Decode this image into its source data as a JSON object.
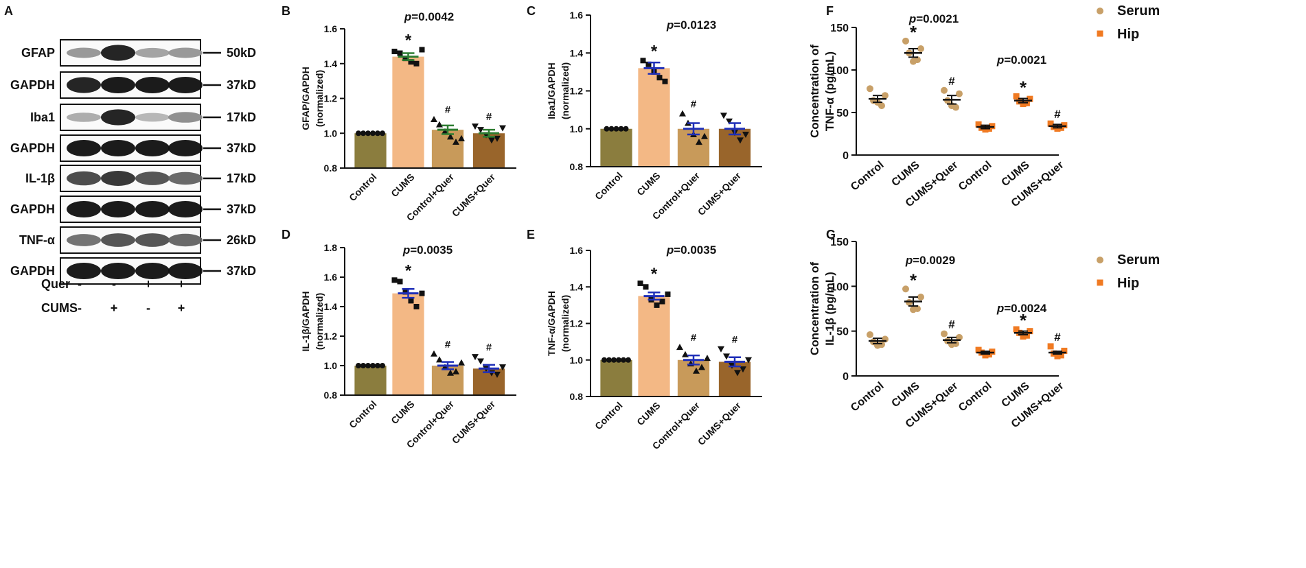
{
  "colors": {
    "control": "#8B7D3E",
    "cums": "#F3B885",
    "control_quer": "#C89A5A",
    "cums_quer": "#99652B",
    "serum": "#C8A068",
    "hip": "#F07A22",
    "err_green": "#2E7D32",
    "err_blue": "#1F2FB8",
    "black": "#111111"
  },
  "blot": {
    "panel": "A",
    "rows": [
      {
        "label": "GFAP",
        "kd": "50kD"
      },
      {
        "label": "GAPDH",
        "kd": "37kD"
      },
      {
        "label": "Iba1",
        "kd": "17kD"
      },
      {
        "label": "GAPDH",
        "kd": "37kD"
      },
      {
        "label": "IL-1β",
        "kd": "17kD"
      },
      {
        "label": "GAPDH",
        "kd": "37kD"
      },
      {
        "label": "TNF-α",
        "kd": "26kD"
      },
      {
        "label": "GAPDH",
        "kd": "37kD"
      }
    ],
    "conditions": [
      {
        "name": "Quer",
        "signs": [
          "-",
          "-",
          "+",
          "+"
        ]
      },
      {
        "name": "CUMS",
        "signs": [
          "-",
          "+",
          "-",
          "+"
        ]
      }
    ]
  },
  "chart_data": [
    {
      "panel": "B",
      "type": "bar",
      "ylabel": "GFAP/GAPDH\n(normalized)",
      "ylim": [
        0.8,
        1.6
      ],
      "yticks": [
        0.8,
        1.0,
        1.2,
        1.4,
        1.6
      ],
      "categories": [
        "Control",
        "CUMS",
        "Control+Quer",
        "CUMS+Quer"
      ],
      "values": [
        1.0,
        1.44,
        1.02,
        1.0
      ],
      "sem": [
        0,
        0.02,
        0.025,
        0.02
      ],
      "err_color": "err_green",
      "p": "p=0.0042",
      "stars": [
        "",
        "*",
        "#",
        "#"
      ],
      "markers": [
        "circle",
        "square",
        "triangle",
        "triangle-down"
      ],
      "points": [
        [
          1,
          1,
          1,
          1,
          1,
          1
        ],
        [
          1.47,
          1.46,
          1.43,
          1.41,
          1.4,
          1.48
        ],
        [
          1.08,
          1.05,
          1.01,
          0.98,
          0.95,
          0.97
        ],
        [
          1.04,
          1.02,
          0.99,
          0.96,
          0.97,
          1.03
        ]
      ]
    },
    {
      "panel": "C",
      "type": "bar",
      "ylabel": "Iba1/GAPDH\n(normalized)",
      "ylim": [
        0.8,
        1.6
      ],
      "yticks": [
        0.8,
        1.0,
        1.2,
        1.4,
        1.6
      ],
      "categories": [
        "Control",
        "CUMS",
        "Control+Quer",
        "CUMS+Quer"
      ],
      "values": [
        1.0,
        1.32,
        1.0,
        1.0
      ],
      "sem": [
        0,
        0.03,
        0.03,
        0.03
      ],
      "err_color": "err_blue",
      "p": "p=0.0123",
      "stars": [
        "",
        "*",
        "#",
        ""
      ],
      "markers": [
        "circle",
        "square",
        "triangle",
        "triangle-down"
      ],
      "points": [
        [
          1,
          1,
          1,
          1,
          1
        ],
        [
          1.36,
          1.34,
          1.3,
          1.27,
          1.25
        ],
        [
          1.08,
          1.03,
          0.97,
          0.93,
          0.96
        ],
        [
          1.07,
          1.04,
          0.98,
          0.94,
          0.97
        ]
      ]
    },
    {
      "panel": "D",
      "type": "bar",
      "ylabel": "IL-1β/GAPDH\n(normalized)",
      "ylim": [
        0.8,
        1.8
      ],
      "yticks": [
        0.8,
        1.0,
        1.2,
        1.4,
        1.6,
        1.8
      ],
      "categories": [
        "Control",
        "CUMS",
        "Control+Quer",
        "CUMS+Quer"
      ],
      "values": [
        1.0,
        1.49,
        1.0,
        0.98
      ],
      "sem": [
        0,
        0.03,
        0.025,
        0.025
      ],
      "err_color": "err_blue",
      "p": "p=0.0035",
      "stars": [
        "",
        "*",
        "#",
        "#"
      ],
      "markers": [
        "circle",
        "square",
        "triangle",
        "triangle-down"
      ],
      "points": [
        [
          1,
          1,
          1,
          1,
          1,
          1
        ],
        [
          1.58,
          1.57,
          1.5,
          1.44,
          1.4,
          1.49
        ],
        [
          1.08,
          1.04,
          0.99,
          0.95,
          0.96,
          1.02
        ],
        [
          1.06,
          1.03,
          0.98,
          0.95,
          0.94,
          0.99
        ]
      ]
    },
    {
      "panel": "E",
      "type": "bar",
      "ylabel": "TNF-α/GAPDH\n(normalized)",
      "ylim": [
        0.8,
        1.6
      ],
      "yticks": [
        0.8,
        1.0,
        1.2,
        1.4,
        1.6
      ],
      "categories": [
        "Control",
        "CUMS",
        "Control+Quer",
        "CUMS+Quer"
      ],
      "values": [
        1.0,
        1.35,
        1.0,
        0.99
      ],
      "sem": [
        0,
        0.02,
        0.025,
        0.025
      ],
      "err_color": "err_blue",
      "p": "p=0.0035",
      "stars": [
        "",
        "*",
        "#",
        "#"
      ],
      "markers": [
        "circle",
        "square",
        "triangle",
        "triangle-down"
      ],
      "points": [
        [
          1,
          1,
          1,
          1,
          1,
          1
        ],
        [
          1.42,
          1.4,
          1.33,
          1.3,
          1.32,
          1.36
        ],
        [
          1.07,
          1.03,
          0.98,
          0.94,
          0.96,
          1.01
        ],
        [
          1.06,
          1.02,
          0.97,
          0.93,
          0.95,
          1.0
        ]
      ]
    },
    {
      "panel": "F",
      "type": "scatter",
      "ylabel": "Concentration of\nTNF-α (pg/mL)",
      "ylim": [
        0,
        150
      ],
      "yticks": [
        0,
        50,
        100,
        150
      ],
      "categories": [
        "Control",
        "CUMS",
        "CUMS+Quer",
        "Control",
        "CUMS",
        "CUMS+Quer"
      ],
      "series": [
        {
          "name": "Serum",
          "means": [
            66,
            120,
            65
          ],
          "sem": [
            4,
            5,
            5
          ],
          "points": [
            [
              78,
              70,
              64,
              58,
              62
            ],
            [
              134,
              125,
              120,
              112,
              110
            ],
            [
              76,
              72,
              64,
              56,
              58
            ]
          ]
        },
        {
          "name": "Hip",
          "means": [
            33,
            64,
            34
          ],
          "sem": [
            2,
            2.5,
            2
          ],
          "points": [
            [
              36,
              34,
              32,
              31,
              30
            ],
            [
              69,
              66,
              63,
              61,
              60
            ],
            [
              37,
              35,
              33,
              32,
              31
            ]
          ]
        }
      ],
      "p_serum": "p=0.0021",
      "p_hip": "p=0.0021",
      "stars": [
        "",
        "*",
        "#",
        "",
        "*",
        "#"
      ]
    },
    {
      "panel": "G",
      "type": "scatter",
      "ylabel": "Concentration of\nIL-1β (pg/mL)",
      "ylim": [
        0,
        150
      ],
      "yticks": [
        0,
        50,
        100,
        150
      ],
      "categories": [
        "Control",
        "CUMS",
        "CUMS+Quer",
        "Control",
        "CUMS",
        "CUMS+Quer"
      ],
      "series": [
        {
          "name": "Serum",
          "means": [
            39,
            83,
            40
          ],
          "sem": [
            3,
            5,
            3
          ],
          "points": [
            [
              46,
              41,
              38,
              35,
              34
            ],
            [
              97,
              88,
              82,
              75,
              74
            ],
            [
              47,
              43,
              39,
              36,
              35
            ]
          ]
        },
        {
          "name": "Hip",
          "means": [
            26,
            48,
            26
          ],
          "sem": [
            1.5,
            2,
            1.5
          ],
          "points": [
            [
              29,
              27,
              26,
              24,
              23
            ],
            [
              52,
              50,
              48,
              45,
              44
            ],
            [
              33,
              28,
              25,
              23,
              22
            ]
          ]
        }
      ],
      "p_serum": "p=0.0029",
      "p_hip": "p=0.0024",
      "stars": [
        "",
        "*",
        "#",
        "",
        "*",
        "#"
      ]
    }
  ]
}
